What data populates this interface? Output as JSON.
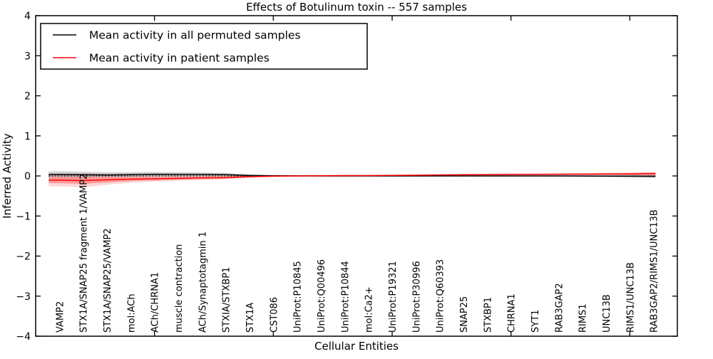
{
  "title": "Effects of Botulinum toxin -- 557 samples",
  "axes": {
    "ylabel": "Inferred Activity",
    "xlabel": "Cellular Entities",
    "ytick_labels": [
      "4",
      "3",
      "2",
      "1",
      "0",
      "−1",
      "−2",
      "−3",
      "−4"
    ]
  },
  "legend": {
    "items": [
      {
        "label": "Mean activity in all permuted samples",
        "color": "#000000"
      },
      {
        "label": "Mean activity in patient samples",
        "color": "#ff0000"
      }
    ]
  },
  "colors": {
    "frame": "#000000",
    "permuted_line": "#000000",
    "patient_line": "#ff0000",
    "permuted_band_inner": "rgba(0,0,0,0.15)",
    "permuted_band_outer": "rgba(0,0,0,0.10)",
    "patient_band_inner": "rgba(255,0,0,0.28)",
    "patient_band_outer": "rgba(255,0,0,0.16)",
    "zero_line": "#000000"
  },
  "chart_data": {
    "type": "line",
    "title": "Effects of Botulinum toxin -- 557 samples",
    "xlabel": "Cellular Entities",
    "ylabel": "Inferred Activity",
    "ylim": [
      -4,
      4
    ],
    "xlim": [
      0,
      27
    ],
    "yticks": [
      4,
      3,
      2,
      1,
      0,
      -1,
      -2,
      -3,
      -4
    ],
    "xtick_positions_unlabeled": [
      5,
      10,
      15,
      20,
      25
    ],
    "grid": false,
    "legend_position": "upper left",
    "zero_reference_line": {
      "y": 0,
      "style": "dotted",
      "color": "#000000"
    },
    "categories": [
      "VAMP2",
      "STX1A/SNAP25 fragment 1/VAMP2",
      "STX1A/SNAP25/VAMP2",
      "mol:ACh",
      "ACh/CHRNA1",
      "muscle contraction",
      "ACh/Synaptotagmin 1",
      "STXIA/STXBP1",
      "STX1A",
      "CST086",
      "UniProt:P10845",
      "UniProt:Q00496",
      "UniProt:P10844",
      "mol:Ca2+",
      "UniProt:P19321",
      "UniProt:P30996",
      "UniProt:Q60393",
      "SNAP25",
      "STXBP1",
      "CHRNA1",
      "SYT1",
      "RAB3GAP2",
      "RIMS1",
      "UNC13B",
      "RIMS1/UNC13B",
      "RAB3GAP2/RIMS1/UNC13B"
    ],
    "series": [
      {
        "name": "Mean activity in all permuted samples",
        "color": "#000000",
        "values": [
          0.035,
          0.03,
          0.025,
          0.03,
          0.04,
          0.035,
          0.035,
          0.03,
          0.012,
          0.004,
          0.002,
          0.001,
          0.0,
          0.0,
          0.0,
          0.0,
          0.0,
          0.0,
          0.0,
          0.0,
          0.0,
          0.0,
          -0.002,
          -0.004,
          -0.006,
          -0.01
        ],
        "band_inner_halfwidth": [
          0.055,
          0.05,
          0.045,
          0.045,
          0.045,
          0.045,
          0.04,
          0.035,
          0.02,
          0.012,
          0.01,
          0.008,
          0.008,
          0.008,
          0.008,
          0.008,
          0.008,
          0.008,
          0.008,
          0.008,
          0.009,
          0.01,
          0.012,
          0.016,
          0.022,
          0.03
        ],
        "band_outer_halfwidth": [
          0.095,
          0.09,
          0.075,
          0.07,
          0.065,
          0.06,
          0.055,
          0.05,
          0.032,
          0.02,
          0.015,
          0.012,
          0.012,
          0.012,
          0.012,
          0.012,
          0.012,
          0.012,
          0.012,
          0.013,
          0.014,
          0.016,
          0.02,
          0.026,
          0.035,
          0.048
        ]
      },
      {
        "name": "Mean activity in patient samples",
        "color": "#ff0000",
        "values": [
          -0.105,
          -0.115,
          -0.095,
          -0.08,
          -0.07,
          -0.06,
          -0.05,
          -0.042,
          -0.018,
          -0.006,
          0.0,
          0.004,
          0.008,
          0.01,
          0.014,
          0.018,
          0.024,
          0.03,
          0.034,
          0.038,
          0.04,
          0.042,
          0.045,
          0.048,
          0.05,
          0.057
        ],
        "band_inner_halfwidth": [
          0.075,
          0.085,
          0.065,
          0.05,
          0.042,
          0.036,
          0.03,
          0.026,
          0.016,
          0.01,
          0.008,
          0.008,
          0.008,
          0.008,
          0.008,
          0.009,
          0.01,
          0.011,
          0.012,
          0.013,
          0.014,
          0.015,
          0.016,
          0.018,
          0.02,
          0.026
        ],
        "band_outer_halfwidth": [
          0.155,
          0.165,
          0.125,
          0.09,
          0.072,
          0.06,
          0.052,
          0.042,
          0.028,
          0.018,
          0.014,
          0.013,
          0.013,
          0.013,
          0.013,
          0.015,
          0.016,
          0.018,
          0.02,
          0.021,
          0.022,
          0.024,
          0.026,
          0.03,
          0.036,
          0.046
        ]
      }
    ]
  }
}
